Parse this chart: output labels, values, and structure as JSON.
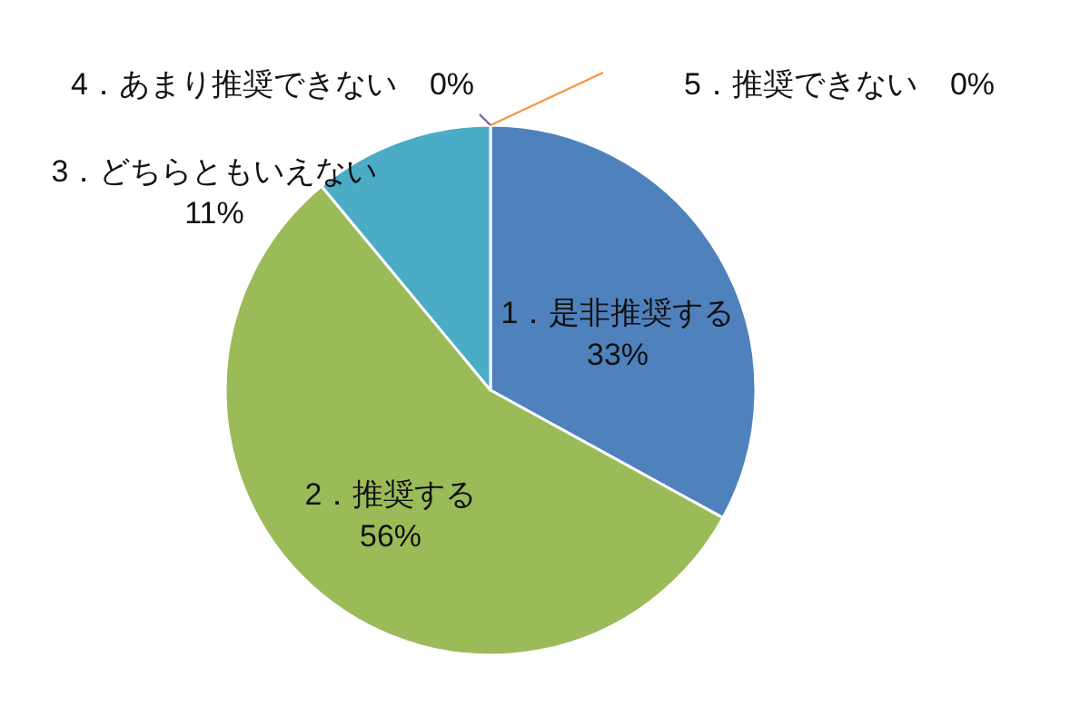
{
  "chart_data": {
    "type": "pie",
    "categories": [
      "1．是非推奨する",
      "2．推奨する",
      "3．どちらともいえない",
      "4．あまり推奨できない",
      "5．推奨できない"
    ],
    "values": [
      33,
      56,
      11,
      0,
      0
    ],
    "value_labels": [
      "33%",
      "56%",
      "11%",
      "0%",
      "0%"
    ],
    "colors": [
      "#4f81bd",
      "#9bbb59",
      "#4bacc6",
      "#8064a2",
      "#f79646"
    ]
  }
}
